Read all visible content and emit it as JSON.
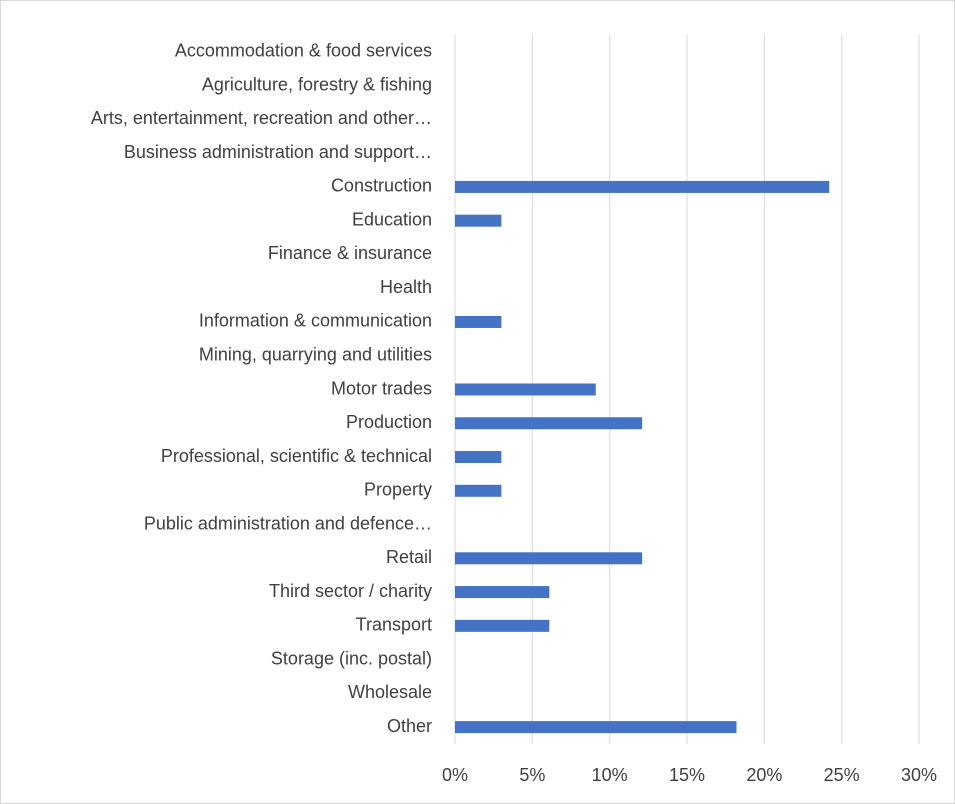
{
  "chart_data": {
    "type": "bar",
    "orientation": "horizontal",
    "categories": [
      "Accommodation & food services",
      "Agriculture, forestry & fishing",
      "Arts, entertainment, recreation and other…",
      "Business administration and support…",
      "Construction",
      "Education",
      "Finance & insurance",
      "Health",
      "Information & communication",
      "Mining, quarrying and utilities",
      "Motor trades",
      "Production",
      "Professional, scientific & technical",
      "Property",
      "Public administration and defence…",
      "Retail",
      "Third sector / charity",
      "Transport",
      "Storage (inc. postal)",
      "Wholesale",
      "Other"
    ],
    "values": [
      0,
      0,
      0,
      0,
      24.2,
      3,
      0,
      0,
      3,
      0,
      9.1,
      12.1,
      3,
      3,
      0,
      12.1,
      6.1,
      6.1,
      0,
      0,
      18.2
    ],
    "color": "#4472c4",
    "xlim": [
      0,
      30
    ],
    "xticks": [
      {
        "value": 0,
        "label": "0%"
      },
      {
        "value": 5,
        "label": "5%"
      },
      {
        "value": 10,
        "label": "10%"
      },
      {
        "value": 15,
        "label": "15%"
      },
      {
        "value": 20,
        "label": "20%"
      },
      {
        "value": 25,
        "label": "25%"
      },
      {
        "value": 30,
        "label": "30%"
      }
    ],
    "grid": true
  }
}
